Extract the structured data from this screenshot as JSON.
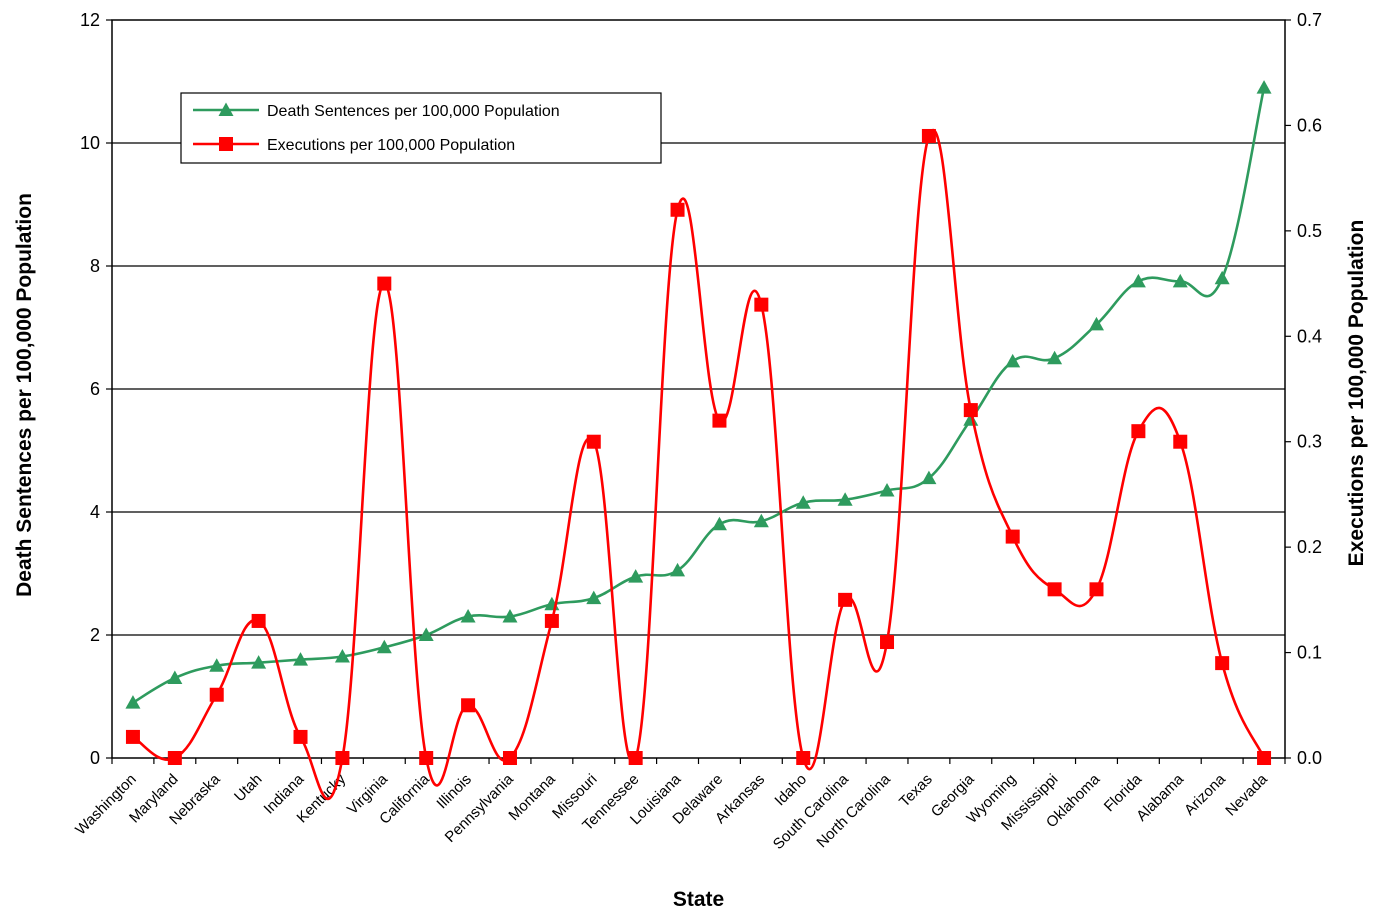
{
  "chart_data": {
    "type": "line",
    "xlabel": "State",
    "ylabel": "Death Sentences per 100,000 Population",
    "y2label": "Executions per 100,000 Population",
    "ylim": [
      0,
      12
    ],
    "y2lim": [
      0,
      0.7
    ],
    "yticks": [
      "0",
      "2",
      "4",
      "6",
      "8",
      "10",
      "12"
    ],
    "y2ticks": [
      "0.0",
      "0.1",
      "0.2",
      "0.3",
      "0.4",
      "0.5",
      "0.6",
      "0.7"
    ],
    "grid": "horizontal",
    "legend_position": "top-left",
    "categories": [
      "Washington",
      "Maryland",
      "Nebraska",
      "Utah",
      "Indiana",
      "Kentucky",
      "Virginia",
      "California",
      "Illinois",
      "Pennsylvania",
      "Montana",
      "Missouri",
      "Tennessee",
      "Louisiana",
      "Delaware",
      "Arkansas",
      "Idaho",
      "South Carolina",
      "North Carolina",
      "Texas",
      "Georgia",
      "Wyoming",
      "Mississippi",
      "Oklahoma",
      "Florida",
      "Alabama",
      "Arizona",
      "Nevada"
    ],
    "series": [
      {
        "name": "Death Sentences per 100,000 Population",
        "axis": "left",
        "color": "#2e9b5e",
        "marker": "triangle",
        "values": [
          0.9,
          1.3,
          1.5,
          1.55,
          1.6,
          1.65,
          1.8,
          2.0,
          2.3,
          2.3,
          2.5,
          2.6,
          2.95,
          3.05,
          3.8,
          3.85,
          4.15,
          4.2,
          4.35,
          4.55,
          5.5,
          6.45,
          6.5,
          7.05,
          7.75,
          7.75,
          7.8,
          10.9
        ]
      },
      {
        "name": "Executions per 100,000 Population",
        "axis": "right",
        "color": "#ff0000",
        "marker": "square",
        "values": [
          0.02,
          0.0,
          0.06,
          0.13,
          0.02,
          0.0,
          0.45,
          0.0,
          0.05,
          0.0,
          0.13,
          0.3,
          0.0,
          0.52,
          0.32,
          0.43,
          0.0,
          0.15,
          0.11,
          0.59,
          0.33,
          0.21,
          0.16,
          0.16,
          0.31,
          0.3,
          0.09,
          0.0
        ]
      }
    ]
  }
}
